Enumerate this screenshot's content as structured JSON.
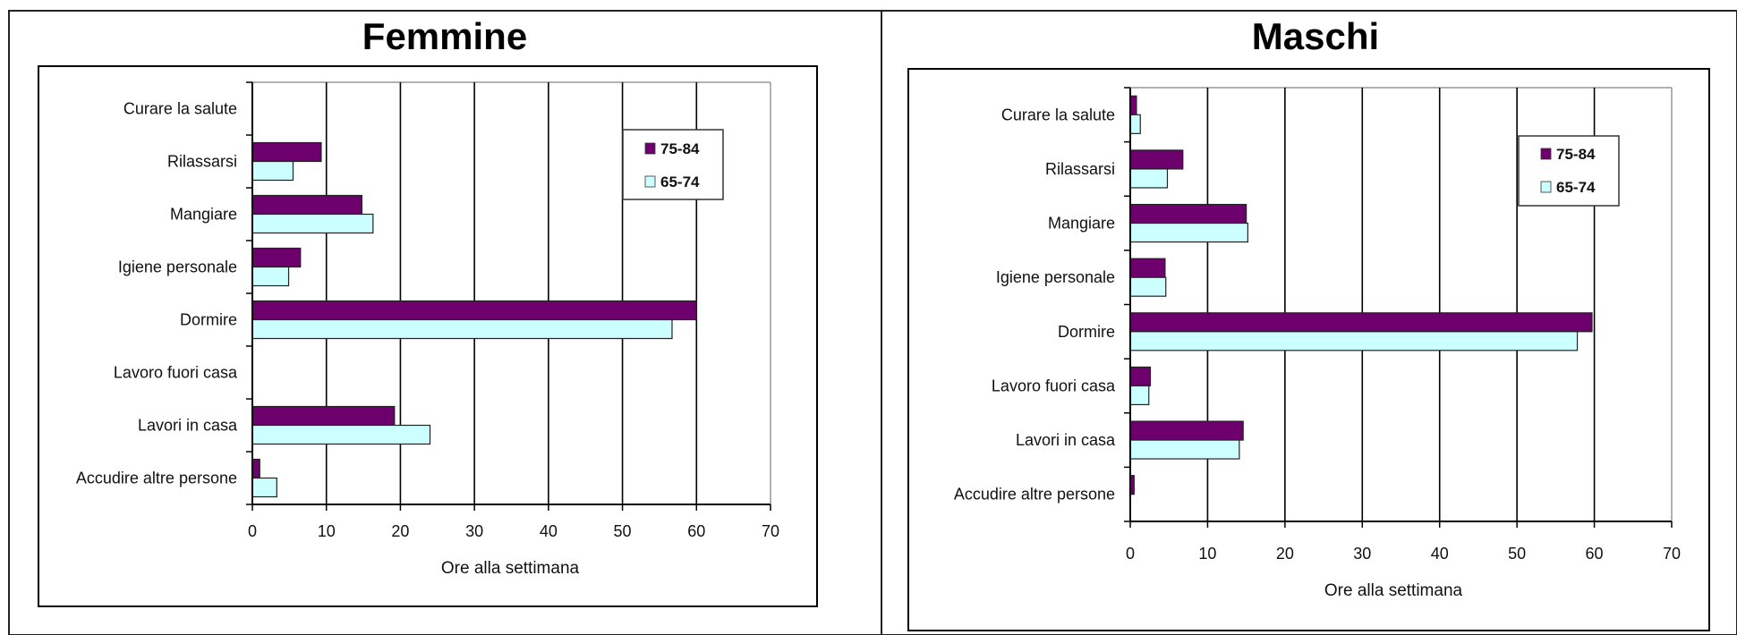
{
  "colors": {
    "s75_84": "#6e006e",
    "s65_74": "#ccffff"
  },
  "chart_data": [
    {
      "type": "bar",
      "orientation": "horizontal",
      "title": "Femmine",
      "xlabel": "Ore alla settimana",
      "xlim": [
        0,
        70
      ],
      "xticks": [
        "0",
        "10",
        "20",
        "30",
        "40",
        "50",
        "60",
        "70"
      ],
      "grid": true,
      "legend_position": "top-right",
      "categories": [
        "Curare la salute",
        "Rilassarsi",
        "Mangiare",
        "Igiene personale",
        "Dormire",
        "Lavoro fuori casa",
        "Lavori in casa",
        "Accudire altre persone"
      ],
      "series": [
        {
          "name": "75-84",
          "values": [
            0,
            9.3,
            14.8,
            6.5,
            60,
            0,
            19.2,
            1
          ]
        },
        {
          "name": "65-74",
          "values": [
            0,
            5.5,
            16.3,
            4.9,
            56.7,
            0,
            24,
            3.3
          ]
        }
      ]
    },
    {
      "type": "bar",
      "orientation": "horizontal",
      "title": "Maschi",
      "xlabel": "Ore alla settimana",
      "xlim": [
        0,
        70
      ],
      "xticks": [
        "0",
        "10",
        "20",
        "30",
        "40",
        "50",
        "60",
        "70"
      ],
      "grid": true,
      "legend_position": "top-right",
      "categories": [
        "Curare la salute",
        "Rilassarsi",
        "Mangiare",
        "Igiene personale",
        "Dormire",
        "Lavoro fuori casa",
        "Lavori in casa",
        "Accudire altre persone"
      ],
      "series": [
        {
          "name": "75-84",
          "values": [
            0.8,
            6.8,
            15,
            4.5,
            59.7,
            2.6,
            14.6,
            0.5
          ]
        },
        {
          "name": "65-74",
          "values": [
            1.3,
            4.8,
            15.2,
            4.6,
            57.8,
            2.4,
            14.1,
            0
          ]
        }
      ]
    }
  ]
}
